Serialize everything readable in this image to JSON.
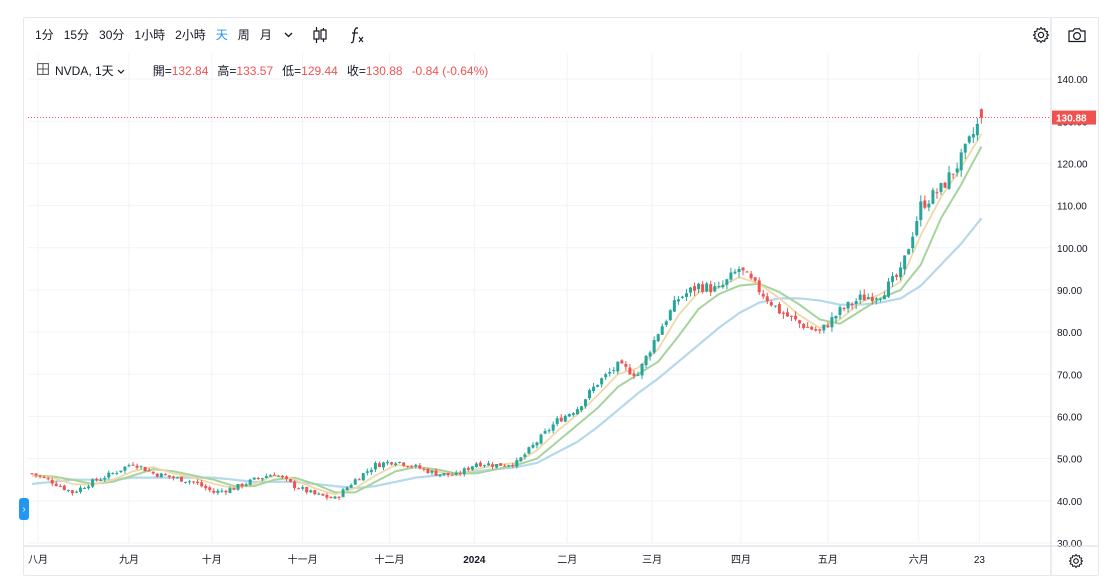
{
  "toolbar": {
    "intervals": [
      {
        "label": "1分",
        "active": false
      },
      {
        "label": "15分",
        "active": false
      },
      {
        "label": "30分",
        "active": false
      },
      {
        "label": "1小時",
        "active": false
      },
      {
        "label": "2小時",
        "active": false
      },
      {
        "label": "天",
        "active": true
      },
      {
        "label": "周",
        "active": false
      },
      {
        "label": "月",
        "active": false
      }
    ],
    "icons": [
      "chevron-down-icon",
      "candlestick-icon",
      "function-icon",
      "gear-icon",
      "camera-icon"
    ]
  },
  "legend": {
    "symbol": "NVDA, 1天",
    "open_label": "開=",
    "open": "132.84",
    "high_label": "高=",
    "high": "133.57",
    "low_label": "低=",
    "low": "129.44",
    "close_label": "收=",
    "close": "130.88",
    "change": "-0.84 (-0.64%)"
  },
  "colors": {
    "up": "#26a69a",
    "down": "#ef5350",
    "ma_short": "#f0d9a8",
    "ma_mid": "#a6d49b",
    "ma_long": "#b5d8ea",
    "last_price": "#ef5350"
  },
  "chart_data": {
    "type": "candlestick",
    "symbol": "NVDA",
    "interval": "1天",
    "ylim": [
      30,
      145
    ],
    "y_ticks": [
      "30.00",
      "40.00",
      "50.00",
      "60.00",
      "70.00",
      "80.00",
      "90.00",
      "100.00",
      "110.00",
      "120.00",
      "130.00",
      "140.00"
    ],
    "x_ticks": [
      {
        "label": "八月",
        "week": 0.3
      },
      {
        "label": "九月",
        "week": 4.8
      },
      {
        "label": "十月",
        "week": 8.9
      },
      {
        "label": "十一月",
        "week": 13.4
      },
      {
        "label": "十二月",
        "week": 17.7
      },
      {
        "label": "2024",
        "week": 21.9
      },
      {
        "label": "二月",
        "week": 26.5
      },
      {
        "label": "三月",
        "week": 30.7
      },
      {
        "label": "四月",
        "week": 35.1
      },
      {
        "label": "五月",
        "week": 39.4
      },
      {
        "label": "六月",
        "week": 43.9
      },
      {
        "label": "23",
        "week": 46.9
      }
    ],
    "last_price": 130.88,
    "last_price_label": "130.88",
    "weekly_closes": [
      46.5,
      44.5,
      42.0,
      44.5,
      46.5,
      49.0,
      46.5,
      45.5,
      44.5,
      42.0,
      43.0,
      45.0,
      46.5,
      43.5,
      41.5,
      40.5,
      45.0,
      48.5,
      49.5,
      48.0,
      46.5,
      46.0,
      49.0,
      48.5,
      49.0,
      54.0,
      59.0,
      62.0,
      68.0,
      72.0,
      70.0,
      80.0,
      88.0,
      91.0,
      90.0,
      95.0,
      90.0,
      85.0,
      82.0,
      80.0,
      85.0,
      88.0,
      89.0,
      94.0,
      110.0,
      114.0,
      121.0,
      130.88
    ],
    "ma_short_weekly": [
      46.0,
      45.5,
      44.0,
      43.8,
      45.0,
      47.0,
      48.0,
      46.5,
      45.5,
      44.0,
      43.0,
      44.0,
      46.0,
      45.0,
      43.0,
      41.5,
      43.0,
      46.0,
      48.5,
      48.0,
      47.0,
      46.0,
      47.5,
      48.5,
      49.0,
      52.0,
      56.5,
      60.5,
      65.0,
      70.0,
      71.5,
      76.0,
      84.0,
      89.5,
      90.5,
      93.0,
      91.5,
      88.0,
      84.0,
      81.0,
      83.0,
      87.0,
      89.0,
      92.0,
      103.0,
      112.0,
      119.0,
      127.0
    ],
    "ma_mid_weekly": [
      46.0,
      45.8,
      45.0,
      44.0,
      44.5,
      46.0,
      47.5,
      47.0,
      46.0,
      45.0,
      43.5,
      43.5,
      45.0,
      45.5,
      44.0,
      42.0,
      42.0,
      44.5,
      47.0,
      48.0,
      47.5,
      46.5,
      46.5,
      47.5,
      48.5,
      50.0,
      54.0,
      58.0,
      62.0,
      67.0,
      70.0,
      73.0,
      79.0,
      85.5,
      89.0,
      91.0,
      91.5,
      89.5,
      86.5,
      83.0,
      82.0,
      85.0,
      88.0,
      90.0,
      96.0,
      107.0,
      115.0,
      124.0
    ],
    "ma_long_weekly": [
      44.0,
      44.5,
      45.0,
      45.0,
      45.0,
      45.5,
      45.5,
      45.5,
      45.5,
      45.5,
      45.0,
      44.5,
      44.5,
      44.5,
      44.0,
      43.5,
      43.0,
      43.5,
      44.5,
      45.5,
      46.0,
      46.5,
      47.0,
      47.5,
      48.0,
      49.0,
      51.5,
      54.0,
      57.5,
      61.5,
      65.5,
      69.0,
      73.0,
      77.0,
      81.0,
      84.5,
      87.0,
      88.0,
      88.0,
      87.5,
      86.5,
      86.5,
      87.0,
      88.0,
      91.0,
      96.0,
      101.0,
      107.0
    ]
  }
}
